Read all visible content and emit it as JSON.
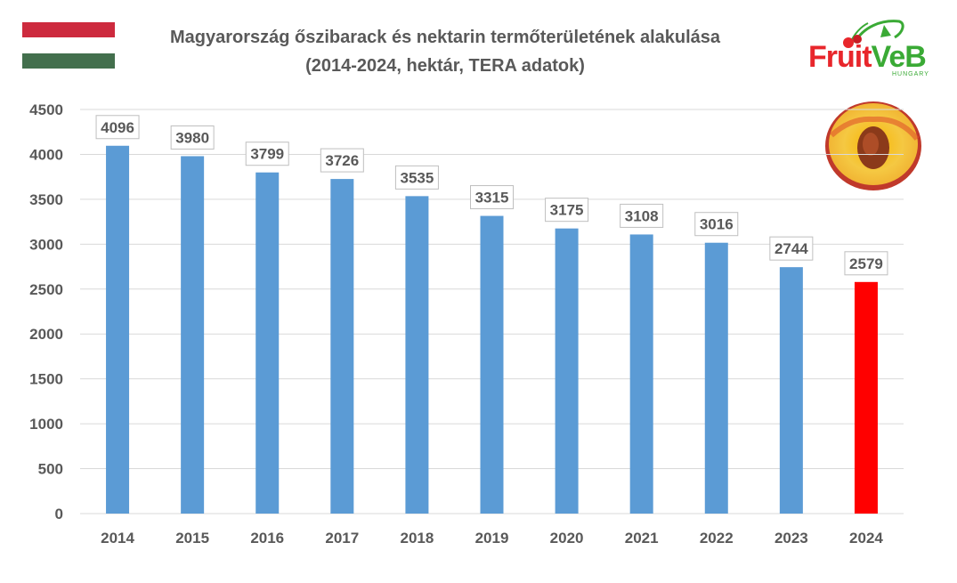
{
  "title_line1": "Magyarország őszibarack és nektarin termőterületének alakulása",
  "title_line2": "(2014-2024, hektár, TERA adatok)",
  "logo": {
    "text_main": "Fruit",
    "text_accent": "VeB",
    "subtext": "HUNGARY"
  },
  "colors": {
    "bar": "#5b9bd5",
    "highlight_bar": "#ff0000",
    "text": "#595959",
    "grid": "#d9d9d9"
  },
  "chart_data": {
    "type": "bar",
    "categories": [
      "2014",
      "2015",
      "2016",
      "2017",
      "2018",
      "2019",
      "2020",
      "2021",
      "2022",
      "2023",
      "2024"
    ],
    "values": [
      4096,
      3980,
      3799,
      3726,
      3535,
      3315,
      3175,
      3108,
      3016,
      2744,
      2579
    ],
    "highlight_index": 10,
    "ylim": [
      0,
      4500
    ],
    "yticks": [
      "0",
      "500",
      "1000",
      "1500",
      "2000",
      "2500",
      "3000",
      "3500",
      "4000",
      "4500"
    ],
    "grid": true,
    "data_labels": true
  }
}
